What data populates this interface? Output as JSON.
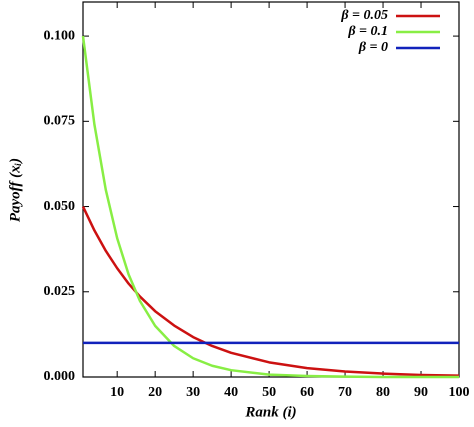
{
  "chart_data": {
    "type": "line",
    "x_label": "Rank (i)",
    "y_label": "Payoff (xᵢ)",
    "x": [
      1,
      4,
      7,
      10,
      13,
      16,
      20,
      25,
      30,
      35,
      40,
      50,
      60,
      70,
      80,
      90,
      100
    ],
    "series": [
      {
        "name": "β = 0.05",
        "color": "#cc1111",
        "values": [
          0.05,
          0.043,
          0.037,
          0.0319,
          0.0274,
          0.0236,
          0.0193,
          0.0151,
          0.0117,
          0.0091,
          0.0071,
          0.0043,
          0.0026,
          0.0016,
          0.001,
          0.0006,
          0.0004
        ]
      },
      {
        "name": "β = 0.1",
        "color": "#88ee44",
        "values": [
          0.1,
          0.0741,
          0.0549,
          0.0407,
          0.0301,
          0.0223,
          0.015,
          0.0091,
          0.0055,
          0.0033,
          0.002,
          0.0007,
          0.0003,
          0.0001,
          0,
          0,
          0
        ]
      },
      {
        "name": "β = 0",
        "color": "#1122bb",
        "values": [
          0.01,
          0.01,
          0.01,
          0.01,
          0.01,
          0.01,
          0.01,
          0.01,
          0.01,
          0.01,
          0.01,
          0.01,
          0.01,
          0.01,
          0.01,
          0.01,
          0.01
        ]
      }
    ],
    "xlim": [
      1,
      100
    ],
    "xticks": [
      10,
      20,
      30,
      40,
      50,
      60,
      70,
      80,
      90,
      100
    ],
    "ylim": [
      0,
      0.11
    ],
    "yticks": [
      {
        "value": 0,
        "label": "0.000"
      },
      {
        "value": 0.025,
        "label": "0.025"
      },
      {
        "value": 0.05,
        "label": "0.050"
      },
      {
        "value": 0.075,
        "label": "0.075"
      },
      {
        "value": 0.1,
        "label": "0.100"
      }
    ],
    "legend": "upper right"
  }
}
